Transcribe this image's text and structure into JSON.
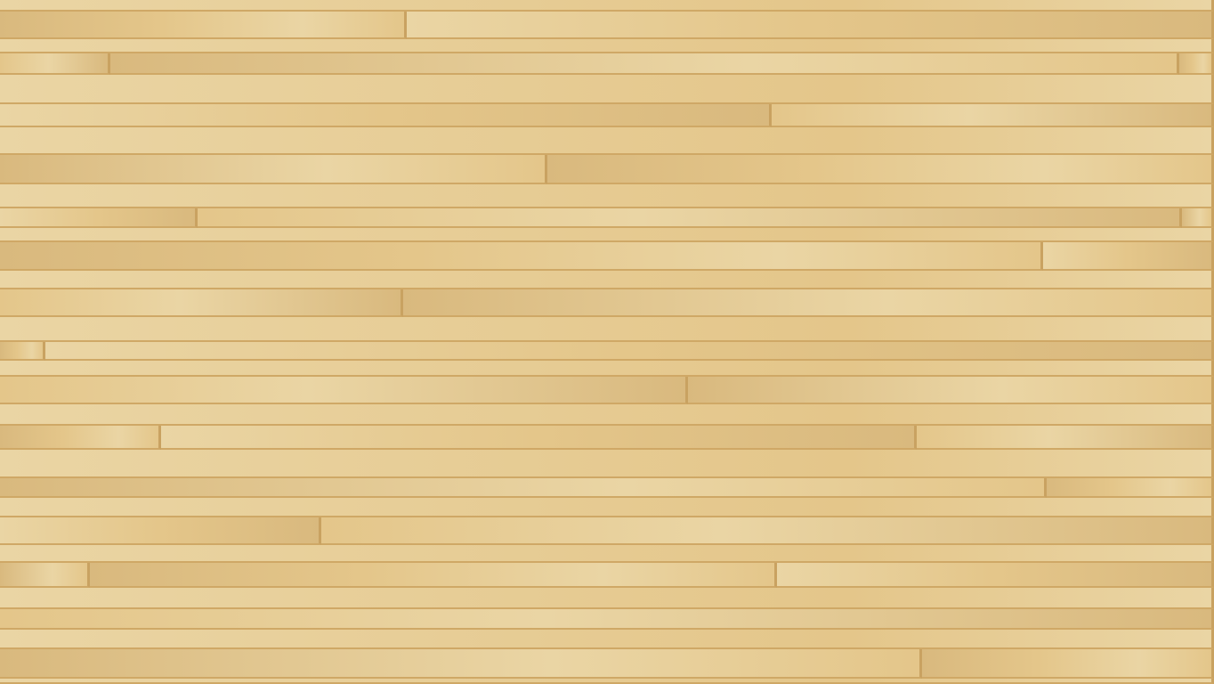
{
  "scene": {
    "type": "wood-plank-texture",
    "colors": {
      "light": "#ead5a4",
      "mid": "#e4c68a",
      "dark": "#d9b97e",
      "seam": "#c9a261"
    }
  }
}
